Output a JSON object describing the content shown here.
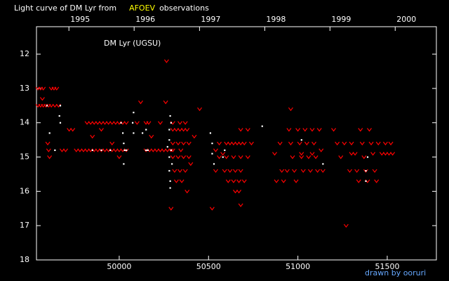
{
  "chart_data": {
    "type": "scatter",
    "title": "Light curve of DM Lyr from",
    "title_highlight": "AFOEV",
    "title_end": "observations",
    "annotation": "DM Lyr (UGSU)",
    "credit": "drawn by ooruri",
    "xlim": [
      49537,
      51775
    ],
    "xticks": [
      50000,
      50500,
      51000,
      51500
    ],
    "x2ticks": [
      {
        "value": 49718.5,
        "label": "1995"
      },
      {
        "value": 50083.5,
        "label": "1996"
      },
      {
        "value": 50449.5,
        "label": "1997"
      },
      {
        "value": 50814.5,
        "label": "1998"
      },
      {
        "value": 51179.5,
        "label": "1999"
      },
      {
        "value": 51544.5,
        "label": "2000"
      }
    ],
    "ylim": [
      18,
      11.2
    ],
    "yticks": [
      12,
      13,
      14,
      15,
      16,
      17,
      18
    ],
    "series": [
      {
        "color": "#ff0000",
        "marker": "v",
        "x": [
          49545,
          49560,
          49575,
          49545,
          49560,
          49575,
          49590,
          49605,
          49620,
          49635,
          49650,
          49620,
          49640,
          49660,
          49600,
          49605,
          49610,
          49570,
          49680,
          49700,
          49720,
          49740,
          49760,
          49780,
          49800,
          49820,
          49840,
          49860,
          49880,
          49900,
          49920,
          49940,
          49960,
          49980,
          50000,
          50020,
          50040,
          49820,
          49840,
          49860,
          49880,
          49900,
          49920,
          49940,
          49960,
          49980,
          50000,
          50020,
          50040,
          49850,
          49900,
          49960,
          50000,
          50100,
          50120,
          50150,
          50165,
          50180,
          50150,
          50170,
          50190,
          50210,
          50230,
          50250,
          50270,
          50290,
          50230,
          50260,
          50265,
          50290,
          50300,
          50320,
          50340,
          50360,
          50380,
          50300,
          50330,
          50360,
          50390,
          50300,
          50330,
          50360,
          50390,
          50310,
          50340,
          50370,
          50320,
          50350,
          50380,
          50300,
          50340,
          50370,
          50300,
          50345,
          50400,
          50420,
          50450,
          50520,
          50540,
          50560,
          50580,
          50600,
          50620,
          50640,
          50660,
          50680,
          50700,
          50560,
          50600,
          50640,
          50680,
          50590,
          50620,
          50650,
          50680,
          50610,
          50640,
          50670,
          50650,
          50670,
          50680,
          50680,
          50720,
          50740,
          50720,
          50700,
          50540,
          50870,
          50880,
          50900,
          50910,
          50920,
          50940,
          50950,
          50960,
          50970,
          50980,
          50990,
          51000,
          51010,
          51020,
          51030,
          51040,
          51050,
          51060,
          51070,
          51080,
          51090,
          51100,
          51110,
          51120,
          51130,
          51140,
          50960,
          51020,
          51080,
          51200,
          51220,
          51240,
          51260,
          51270,
          51290,
          51300,
          51320,
          51330,
          51340,
          51350,
          51360,
          51370,
          51380,
          51390,
          51400,
          51410,
          51420,
          51430,
          51440,
          51450,
          51470,
          51490,
          51510,
          51530,
          51490,
          51520,
          51300
        ],
        "values": [
          13.0,
          13.0,
          13.0,
          13.5,
          13.5,
          13.5,
          13.5,
          13.5,
          13.0,
          13.0,
          13.0,
          13.5,
          13.5,
          13.5,
          14.6,
          14.8,
          15.0,
          13.3,
          14.8,
          14.8,
          14.2,
          14.2,
          14.8,
          14.8,
          14.8,
          14.8,
          14.8,
          14.8,
          14.8,
          14.8,
          14.8,
          14.8,
          14.8,
          14.8,
          14.8,
          14.8,
          14.8,
          14.0,
          14.0,
          14.0,
          14.0,
          14.0,
          14.0,
          14.0,
          14.0,
          14.0,
          14.0,
          14.0,
          14.0,
          14.4,
          14.2,
          14.6,
          15.0,
          14.0,
          13.4,
          14.0,
          14.0,
          14.4,
          14.8,
          14.8,
          14.8,
          14.8,
          14.8,
          14.8,
          14.8,
          14.8,
          14.0,
          13.4,
          12.2,
          16.5,
          14.2,
          14.2,
          14.2,
          14.2,
          14.2,
          14.6,
          14.6,
          14.6,
          14.6,
          15.0,
          15.0,
          15.0,
          15.0,
          15.4,
          15.4,
          15.4,
          15.7,
          15.7,
          16.0,
          14.0,
          14.0,
          14.0,
          14.8,
          14.8,
          15.2,
          14.4,
          13.6,
          16.5,
          14.8,
          14.6,
          14.9,
          14.6,
          14.6,
          14.6,
          14.6,
          14.6,
          14.6,
          15.0,
          15.0,
          15.0,
          15.0,
          15.4,
          15.4,
          15.4,
          15.4,
          15.7,
          15.7,
          15.7,
          16.0,
          16.0,
          16.4,
          14.2,
          14.2,
          14.6,
          15.0,
          15.7,
          15.4,
          14.9,
          15.7,
          14.6,
          15.4,
          15.7,
          15.4,
          14.2,
          14.6,
          15.0,
          15.4,
          15.7,
          14.2,
          14.6,
          15.0,
          15.4,
          14.2,
          14.6,
          15.0,
          15.4,
          14.2,
          14.6,
          15.0,
          15.4,
          14.2,
          14.8,
          15.4,
          13.6,
          14.9,
          14.9,
          14.2,
          14.6,
          15.0,
          14.6,
          17.0,
          15.4,
          14.9,
          14.9,
          15.4,
          15.7,
          14.2,
          14.6,
          15.0,
          15.4,
          15.7,
          14.2,
          14.6,
          14.9,
          15.4,
          15.7,
          14.6,
          14.9,
          14.9,
          14.9,
          14.9,
          14.6,
          14.6,
          14.6
        ]
      },
      {
        "color": "#ffffff",
        "marker": "dot",
        "x": [
          49595,
          49610,
          49640,
          49665,
          49670,
          49670,
          49850,
          49900,
          49950,
          50010,
          50020,
          50025,
          50025,
          50030,
          50040,
          50075,
          50080,
          50080,
          50130,
          50150,
          50150,
          50160,
          50270,
          50280,
          50280,
          50280,
          50280,
          50285,
          50285,
          50285,
          50290,
          50290,
          50295,
          50510,
          50520,
          50520,
          50530,
          50580,
          50590,
          50800,
          51020,
          51140,
          51380,
          51380,
          51390
        ],
        "values": [
          13.5,
          14.3,
          14.8,
          13.8,
          14.0,
          13.5,
          14.8,
          14.8,
          14.8,
          14.0,
          14.3,
          14.6,
          15.2,
          14.8,
          14.8,
          14.0,
          14.3,
          13.7,
          14.3,
          14.2,
          14.8,
          14.8,
          14.7,
          14.2,
          14.5,
          15.0,
          15.4,
          15.7,
          15.9,
          13.8,
          14.0,
          14.8,
          15.2,
          14.3,
          14.6,
          14.9,
          15.2,
          15.0,
          14.8,
          14.1,
          14.5,
          15.2,
          15.7,
          15.4,
          15.0
        ]
      }
    ]
  }
}
